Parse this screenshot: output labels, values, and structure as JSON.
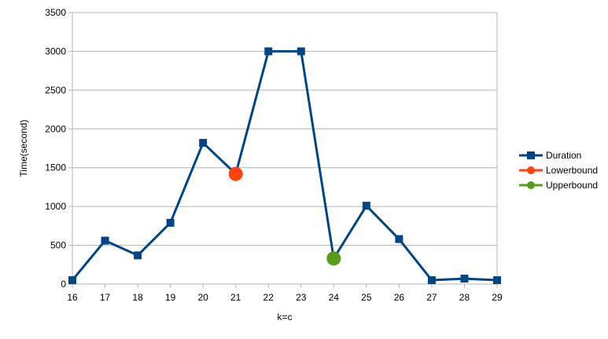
{
  "chart_data": {
    "type": "line",
    "xlabel": "k=c",
    "ylabel": "Time(second)",
    "x": [
      16,
      17,
      18,
      19,
      20,
      21,
      22,
      23,
      24,
      25,
      26,
      27,
      28,
      29
    ],
    "ylim": [
      0,
      3500
    ],
    "yticks": [
      0,
      500,
      1000,
      1500,
      2000,
      2500,
      3000,
      3500
    ],
    "grid": true,
    "legend_position": "right",
    "series": [
      {
        "name": "Duration",
        "marker": "square",
        "color": "#004586",
        "values": [
          50,
          560,
          370,
          790,
          1820,
          1420,
          3000,
          3000,
          330,
          1010,
          580,
          50,
          70,
          50
        ]
      },
      {
        "name": "Lowerbound",
        "marker": "circle",
        "color": "#ff420e",
        "points": [
          {
            "x": 21,
            "y": 1420
          }
        ]
      },
      {
        "name": "Upperbound",
        "marker": "circle",
        "color": "#579d1c",
        "points": [
          {
            "x": 24,
            "y": 330
          }
        ]
      }
    ]
  }
}
